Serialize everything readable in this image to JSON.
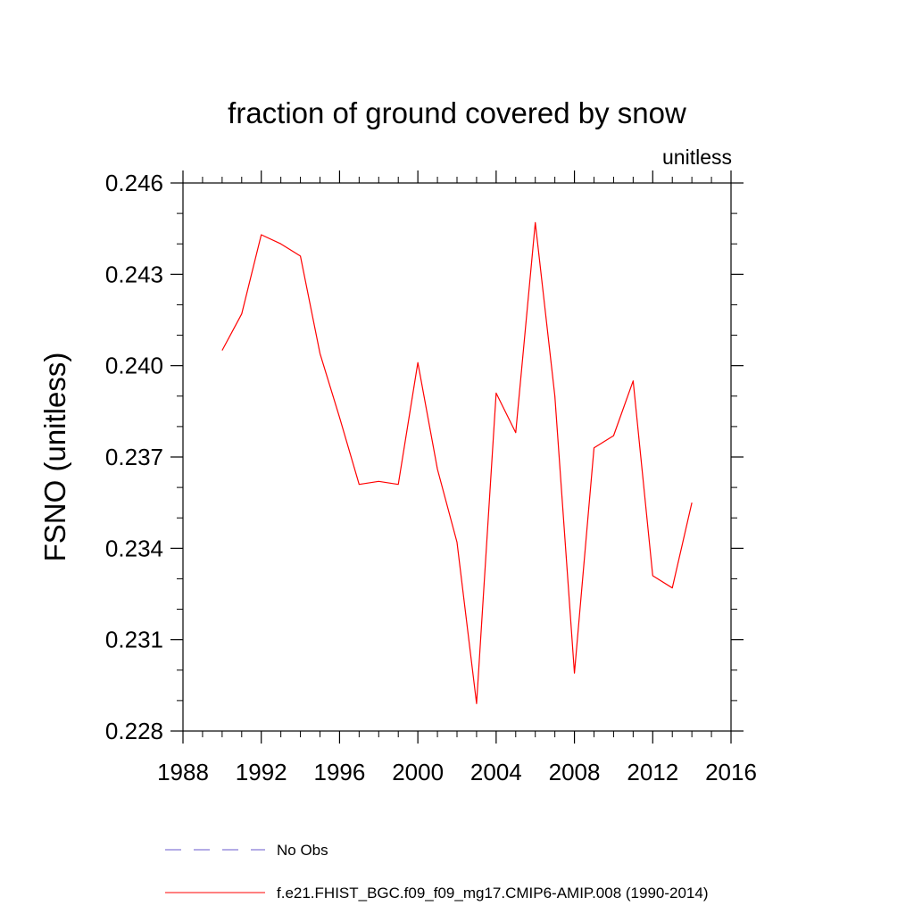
{
  "chart_data": {
    "type": "line",
    "title": "fraction of ground covered by snow",
    "units_label": "unitless",
    "xlabel": "",
    "ylabel": "FSNO  (unitless)",
    "xlim": [
      1988,
      2016
    ],
    "ylim": [
      0.228,
      0.246
    ],
    "x_ticks": [
      1988,
      1992,
      1996,
      2000,
      2004,
      2008,
      2012,
      2016
    ],
    "y_ticks": [
      "0.228",
      "0.231",
      "0.234",
      "0.237",
      "0.240",
      "0.243",
      "0.246"
    ],
    "grid": false,
    "legend_position": "bottom",
    "series": [
      {
        "name": "f.e21.FHIST_BGC.f09_f09_mg17.CMIP6-AMIP.008 (1990-2014)",
        "color": "#ff0000",
        "line_style": "solid",
        "x": [
          1990,
          1991,
          1992,
          1993,
          1994,
          1995,
          1996,
          1997,
          1998,
          1999,
          2000,
          2001,
          2002,
          2003,
          2004,
          2005,
          2006,
          2007,
          2008,
          2009,
          2010,
          2011,
          2012,
          2013,
          2014
        ],
        "values": [
          0.2405,
          0.2417,
          0.2443,
          0.244,
          0.2436,
          0.2404,
          0.2383,
          0.2361,
          0.2362,
          0.2361,
          0.2401,
          0.2366,
          0.2342,
          0.2289,
          0.2391,
          0.2378,
          0.2447,
          0.239,
          0.2299,
          0.2373,
          0.2377,
          0.2395,
          0.2331,
          0.2327,
          0.2355
        ]
      }
    ],
    "legend": [
      {
        "label": "No Obs",
        "color": "#6a5acd",
        "line_style": "dashed"
      },
      {
        "label": "f.e21.FHIST_BGC.f09_f09_mg17.CMIP6-AMIP.008 (1990-2014)",
        "color": "#ff0000",
        "line_style": "solid"
      }
    ]
  }
}
